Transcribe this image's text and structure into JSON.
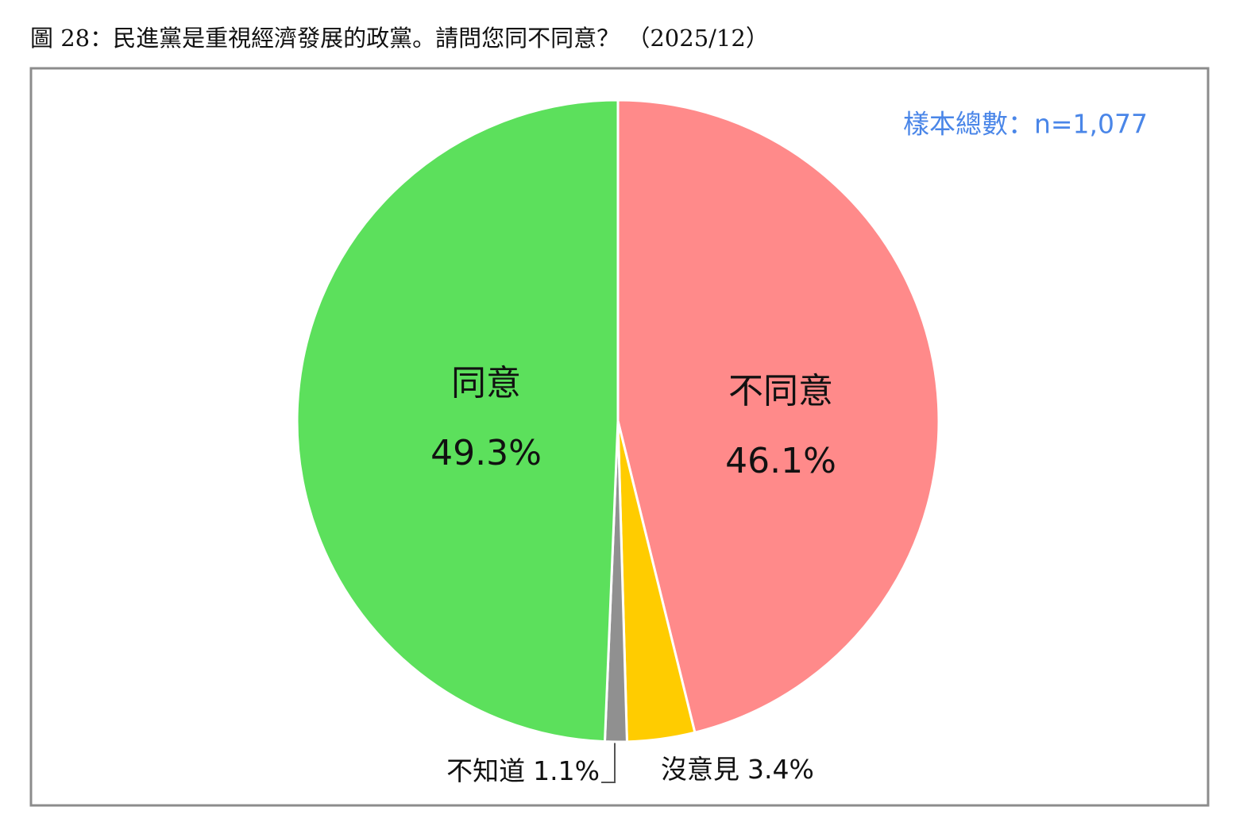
{
  "chart_data": {
    "type": "pie",
    "title": "圖 28：民進黨是重視經濟發展的政黨。請問您同不同意？ （2025/12）",
    "note": "樣本總數：n=1,077",
    "categories": [
      "不同意",
      "沒意見",
      "不知道",
      "同意"
    ],
    "values": [
      46.1,
      3.4,
      1.1,
      49.3
    ],
    "value_labels": [
      "46.1%",
      "3.4%",
      "1.1%",
      "49.3%"
    ],
    "colors": [
      "#ff8a8a",
      "#ffcc00",
      "#909090",
      "#5ce05c"
    ],
    "start": "top",
    "direction": "clockwise"
  }
}
